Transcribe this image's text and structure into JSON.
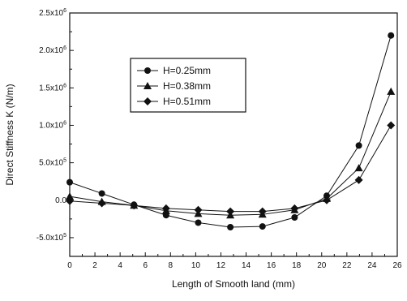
{
  "chart_data": {
    "type": "line",
    "title": "",
    "xlabel": "Length of Smooth land (mm)",
    "ylabel": "Direct Stiffness K (N/m)",
    "xlim": [
      0,
      26
    ],
    "ylim": [
      -750000,
      2500000
    ],
    "x_ticks": [
      0,
      2,
      4,
      6,
      8,
      10,
      12,
      14,
      16,
      18,
      20,
      22,
      24,
      26
    ],
    "x_tick_labels": [
      "0",
      "2",
      "4",
      "6",
      "8",
      "10",
      "12",
      "14",
      "16",
      "18",
      "20",
      "22",
      "24",
      "26"
    ],
    "y_ticks": [
      {
        "value": 2500000,
        "mant": "2.5x10",
        "exp": "6"
      },
      {
        "value": 2000000,
        "mant": "2.0x10",
        "exp": "6"
      },
      {
        "value": 1500000,
        "mant": "1.5x10",
        "exp": "6"
      },
      {
        "value": 1000000,
        "mant": "1.0x10",
        "exp": "6"
      },
      {
        "value": 500000,
        "mant": "5.0x10",
        "exp": "5"
      },
      {
        "value": 0,
        "mant": "0.0",
        "exp": ""
      },
      {
        "value": -500000,
        "mant": "-5.0x10",
        "exp": "5"
      }
    ],
    "grid": false,
    "legend_position": "upper-left",
    "series": [
      {
        "name": "H=0.25mm",
        "marker": "circle",
        "x": [
          0,
          2.55,
          5.1,
          7.65,
          10.2,
          12.75,
          15.3,
          17.85,
          20.4,
          22.95,
          25.5
        ],
        "y": [
          240000,
          90000,
          -60000,
          -200000,
          -300000,
          -360000,
          -350000,
          -230000,
          60000,
          730000,
          2200000
        ]
      },
      {
        "name": "H=0.38mm",
        "marker": "triangle",
        "x": [
          0,
          2.55,
          5.1,
          7.65,
          10.2,
          12.75,
          15.3,
          17.85,
          20.4,
          22.95,
          25.5
        ],
        "y": [
          50000,
          -20000,
          -70000,
          -140000,
          -180000,
          -200000,
          -190000,
          -130000,
          20000,
          430000,
          1450000
        ]
      },
      {
        "name": "H=0.51mm",
        "marker": "diamond",
        "x": [
          0,
          2.55,
          5.1,
          7.65,
          10.2,
          12.75,
          15.3,
          17.85,
          20.4,
          22.95,
          25.5
        ],
        "y": [
          -10000,
          -40000,
          -70000,
          -110000,
          -130000,
          -150000,
          -150000,
          -110000,
          0,
          270000,
          1000000
        ]
      }
    ]
  }
}
